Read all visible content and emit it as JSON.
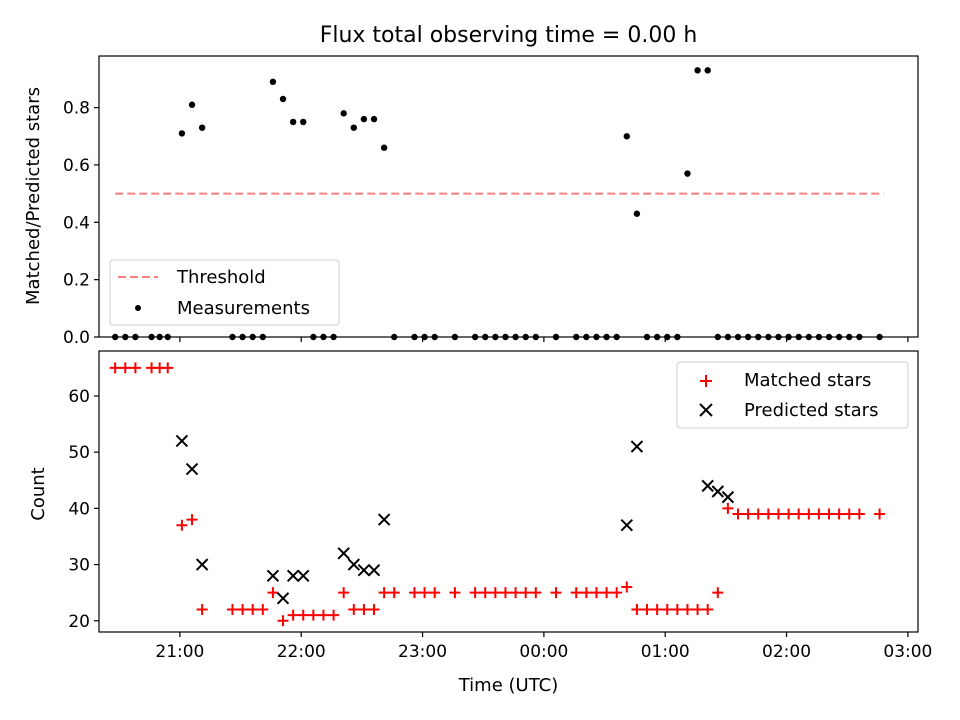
{
  "chart_data": [
    {
      "type": "scatter",
      "title": "Flux total observing time = 0.00 h",
      "ylabel": "Matched/Predicted stars",
      "xlabel": "",
      "xlim": [
        "20:20",
        "03:05"
      ],
      "ylim": [
        0,
        0.98
      ],
      "yticks": [
        "0.0",
        "0.2",
        "0.4",
        "0.6",
        "0.8"
      ],
      "series": [
        {
          "name": "Threshold",
          "kind": "line",
          "color": "#ff7f7f",
          "x": [
            "20:28",
            "02:48"
          ],
          "y": [
            0.5,
            0.5
          ]
        },
        {
          "name": "Measurements",
          "kind": "scatter",
          "color": "#000000",
          "x": [
            "20:28",
            "20:33",
            "20:38",
            "20:46",
            "20:50",
            "20:54",
            "21:01",
            "21:06",
            "21:11",
            "21:26",
            "21:31",
            "21:36",
            "21:41",
            "21:46",
            "21:51",
            "21:56",
            "22:01",
            "22:06",
            "22:11",
            "22:16",
            "22:21",
            "22:26",
            "22:31",
            "22:36",
            "22:41",
            "22:46",
            "22:56",
            "23:01",
            "23:06",
            "23:16",
            "23:26",
            "23:31",
            "23:36",
            "23:41",
            "23:46",
            "23:51",
            "23:56",
            "00:06",
            "00:16",
            "00:21",
            "00:26",
            "00:31",
            "00:36",
            "00:41",
            "00:46",
            "00:51",
            "00:56",
            "01:01",
            "01:06",
            "01:11",
            "01:16",
            "01:21",
            "01:26",
            "01:31",
            "01:36",
            "01:41",
            "01:46",
            "01:51",
            "01:56",
            "02:01",
            "02:06",
            "02:11",
            "02:16",
            "02:21",
            "02:26",
            "02:31",
            "02:36",
            "02:46"
          ],
          "y": [
            0,
            0,
            0,
            0,
            0,
            0,
            0.71,
            0.81,
            0.73,
            0,
            0,
            0,
            0,
            0.89,
            0.83,
            0.75,
            0.75,
            0,
            0,
            0,
            0.78,
            0.73,
            0.76,
            0.76,
            0.66,
            0,
            0,
            0,
            0,
            0,
            0,
            0,
            0,
            0,
            0,
            0,
            0,
            0,
            0,
            0,
            0,
            0,
            0,
            0.7,
            0.43,
            0,
            0,
            0,
            0,
            0.57,
            0.93,
            0.93,
            0,
            0,
            0,
            0,
            0,
            0,
            0,
            0,
            0,
            0,
            0,
            0,
            0,
            0,
            0,
            0
          ]
        }
      ],
      "legend": "lower-left"
    },
    {
      "type": "scatter",
      "title": "",
      "xlabel": "Time (UTC)",
      "ylabel": "Count",
      "xticks": [
        "21:00",
        "22:00",
        "23:00",
        "00:00",
        "01:00",
        "02:00",
        "03:00"
      ],
      "xlim": [
        "20:20",
        "03:05"
      ],
      "ylim": [
        18,
        68
      ],
      "yticks": [
        "20",
        "30",
        "40",
        "50",
        "60"
      ],
      "series": [
        {
          "name": "Matched stars",
          "marker": "plus",
          "color": "#ff0000",
          "x": [
            "20:28",
            "20:33",
            "20:38",
            "20:46",
            "20:50",
            "20:54",
            "21:01",
            "21:06",
            "21:11",
            "21:26",
            "21:31",
            "21:36",
            "21:41",
            "21:46",
            "21:51",
            "21:56",
            "22:01",
            "22:06",
            "22:11",
            "22:16",
            "22:21",
            "22:26",
            "22:31",
            "22:36",
            "22:41",
            "22:46",
            "22:56",
            "23:01",
            "23:06",
            "23:16",
            "23:26",
            "23:31",
            "23:36",
            "23:41",
            "23:46",
            "23:51",
            "23:56",
            "00:06",
            "00:16",
            "00:21",
            "00:26",
            "00:31",
            "00:36",
            "00:41",
            "00:46",
            "00:51",
            "00:56",
            "01:01",
            "01:06",
            "01:11",
            "01:16",
            "01:21",
            "01:26",
            "01:31",
            "01:36",
            "01:41",
            "01:46",
            "01:51",
            "01:56",
            "02:01",
            "02:06",
            "02:11",
            "02:16",
            "02:21",
            "02:26",
            "02:31",
            "02:36",
            "02:46"
          ],
          "y": [
            65,
            65,
            65,
            65,
            65,
            65,
            37,
            38,
            22,
            22,
            22,
            22,
            22,
            25,
            20,
            21,
            21,
            21,
            21,
            21,
            25,
            22,
            22,
            22,
            25,
            25,
            25,
            25,
            25,
            25,
            25,
            25,
            25,
            25,
            25,
            25,
            25,
            25,
            25,
            25,
            25,
            25,
            25,
            26,
            22,
            22,
            22,
            22,
            22,
            22,
            22,
            22,
            25,
            40,
            39,
            39,
            39,
            39,
            39,
            39,
            39,
            39,
            39,
            39,
            39,
            39,
            39,
            39
          ]
        },
        {
          "name": "Predicted stars",
          "marker": "x",
          "color": "#000000",
          "x": [
            "21:01",
            "21:06",
            "21:11",
            "21:46",
            "21:51",
            "21:56",
            "22:01",
            "22:21",
            "22:26",
            "22:31",
            "22:36",
            "22:41",
            "00:41",
            "00:46",
            "01:21",
            "01:26",
            "01:31"
          ],
          "y": [
            52,
            47,
            30,
            28,
            24,
            28,
            28,
            32,
            30,
            29,
            29,
            38,
            37,
            51,
            44,
            43,
            42
          ]
        }
      ],
      "legend": "upper-right"
    }
  ]
}
